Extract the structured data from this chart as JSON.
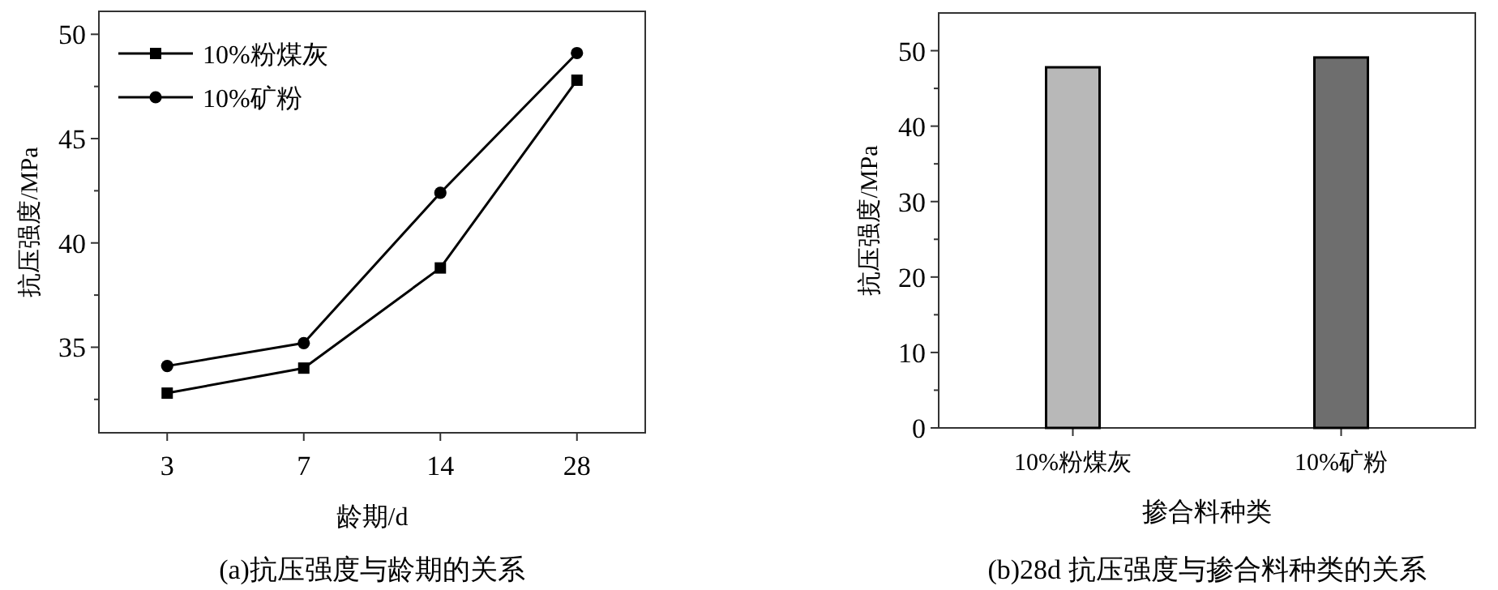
{
  "chart_data": [
    {
      "type": "line",
      "title": "(a)抗压强度与龄期的关系",
      "xlabel": "龄期/d",
      "ylabel": "抗压强度/MPa",
      "categories": [
        "3",
        "7",
        "14",
        "28"
      ],
      "series": [
        {
          "name": "10%粉煤灰",
          "color": "#000000",
          "marker": "square",
          "values": [
            32.8,
            34.0,
            38.8,
            47.8
          ]
        },
        {
          "name": "10%矿粉",
          "color": "#000000",
          "marker": "circle",
          "values": [
            34.1,
            35.2,
            42.4,
            49.1
          ]
        }
      ],
      "ylim": [
        30.9,
        51.1
      ],
      "yticks": [
        {
          "value": 32.5,
          "label": null
        },
        35,
        {
          "value": 37.5,
          "label": null
        },
        40,
        {
          "value": 42.5,
          "label": null
        },
        45,
        {
          "value": 47.5,
          "label": null
        },
        50
      ],
      "legend": "top left",
      "line_style": "solid",
      "grid": false
    },
    {
      "type": "bar",
      "title": "(b)28d 抗压强度与掺合料种类的关系",
      "xlabel": "掺合料种类",
      "ylabel": "抗压强度/MPa",
      "categories": [
        "10%粉煤灰",
        "10%矿粉"
      ],
      "values": [
        47.8,
        49.1
      ],
      "colors": [
        "#b8b8b8",
        "#6e6e6e"
      ],
      "ylim": [
        0,
        55
      ],
      "yticks": [
        0,
        {
          "value": 5,
          "label": null
        },
        10,
        {
          "value": 15,
          "label": null
        },
        20,
        {
          "value": 25,
          "label": null
        },
        30,
        {
          "value": 35,
          "label": null
        },
        40,
        {
          "value": 45,
          "label": null
        },
        50
      ],
      "legend": false,
      "grid": false
    }
  ]
}
